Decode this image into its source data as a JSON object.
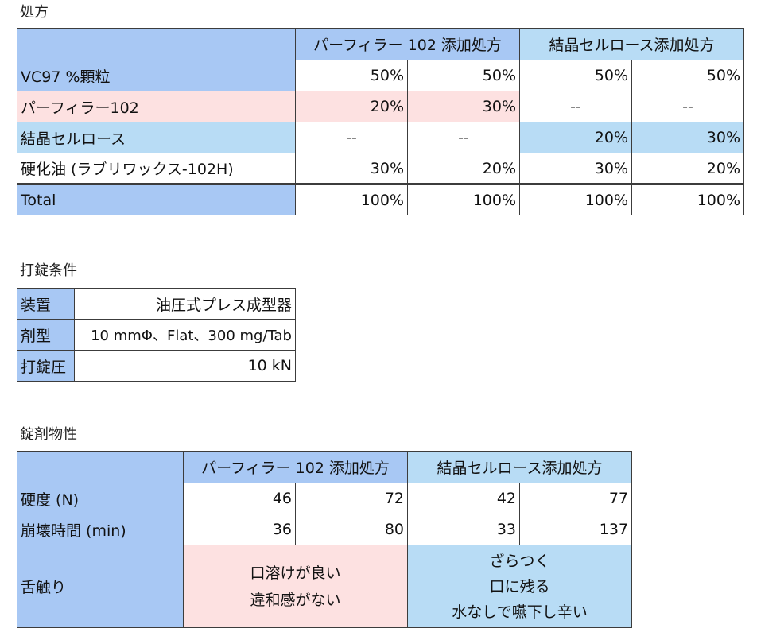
{
  "formulation": {
    "title": "処方",
    "header": [
      "パーフィラー 102 添加処方",
      "結晶セルロース添加処方"
    ],
    "rows": [
      {
        "label": "VC97 %顆粒",
        "values": [
          "50%",
          "50%",
          "50%",
          "50%"
        ]
      },
      {
        "label": "パーフィラー102",
        "values": [
          "20%",
          "30%",
          "--",
          "--"
        ]
      },
      {
        "label": "結晶セルロース",
        "values": [
          "--",
          "--",
          "20%",
          "30%"
        ]
      },
      {
        "label": "硬化油 (ラブリワックス-102H)",
        "values": [
          "30%",
          "20%",
          "30%",
          "20%"
        ]
      },
      {
        "label": "Total",
        "values": [
          "100%",
          "100%",
          "100%",
          "100%"
        ]
      }
    ]
  },
  "tableting": {
    "title": "打錠条件",
    "rows": [
      {
        "label": "装置",
        "value": "油圧式プレス成型器"
      },
      {
        "label": "剤型",
        "value": "10 mmΦ、Flat、300 mg/Tab"
      },
      {
        "label": "打錠圧",
        "value": "10 kN"
      }
    ]
  },
  "properties": {
    "title": "錠剤物性",
    "header": [
      "パーフィラー 102 添加処方",
      "結晶セルロース添加処方"
    ],
    "rows": [
      {
        "label": "硬度 (N)",
        "values": [
          "46",
          "72",
          "42",
          "77"
        ]
      },
      {
        "label": "崩壊時間 (min)",
        "values": [
          "36",
          "80",
          "33",
          "137"
        ]
      }
    ],
    "mouthfeel": {
      "label": "舌触り",
      "perfiller": [
        "口溶けが良い",
        "違和感がない"
      ],
      "cellulose": [
        "ざらつく",
        "口に残る",
        "水なしで嚥下し辛い"
      ]
    }
  },
  "colors": {
    "label_blue": "#a8c8f4",
    "light_blue": "#b8dcf5",
    "pink": "#fde1e1",
    "border": "#3c3c3c"
  }
}
